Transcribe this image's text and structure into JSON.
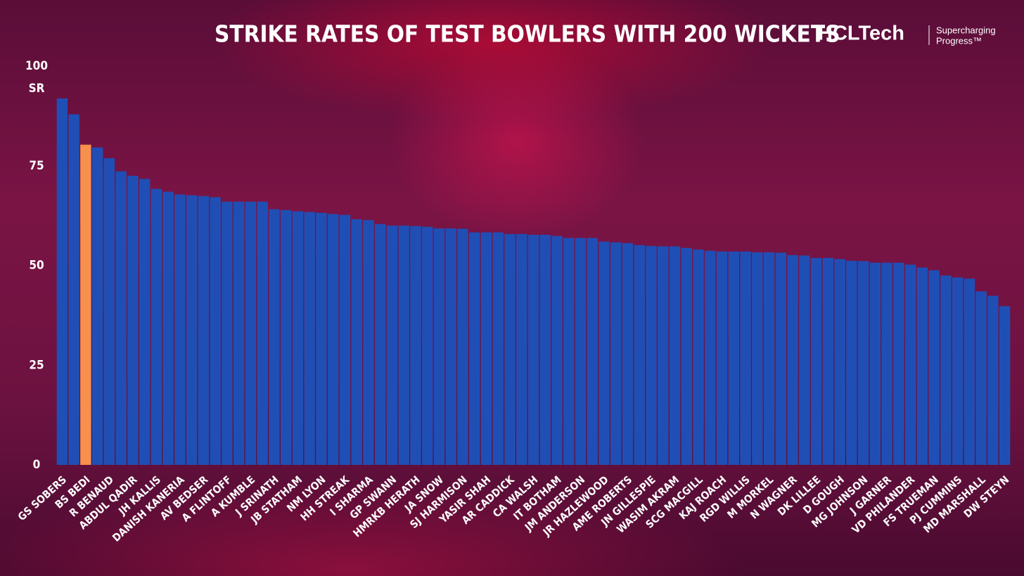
{
  "chart_data": {
    "type": "bar",
    "title": "STRIKE RATES OF TEST BOWLERS WITH 200 WICKETS",
    "brand": "HCLTech",
    "tagline": [
      "Supercharging",
      "Progress™"
    ],
    "y_label": "SR",
    "categories": [
      "GS SOBERS",
      null,
      "BS BEDI",
      null,
      "R BENAUD",
      null,
      "ABDUL QADIR",
      null,
      "JH KALLIS",
      null,
      "DANISH KANERIA",
      null,
      "AV BEDSER",
      null,
      "A FLINTOFF",
      null,
      "A KUMBLE",
      null,
      "J SRINATH",
      null,
      "JB STATHAM",
      null,
      "NM LYON",
      null,
      "HH STREAK",
      null,
      "I SHARMA",
      null,
      "GP SWANN",
      null,
      "HMRKB HERATH",
      null,
      "JA SNOW",
      null,
      "SJ HARMISON",
      null,
      "YASIR SHAH",
      null,
      "AR CADDICK",
      null,
      "CA WALSH",
      null,
      "IT BOTHAM",
      null,
      "JM ANDERSON",
      null,
      "JR HAZLEWOOD",
      null,
      "AME ROBERTS",
      null,
      "JN GILLESPIE",
      null,
      "WASIM AKRAM",
      null,
      "SCG MACGILL",
      null,
      "KAJ ROACH",
      null,
      "RGD WILLIS",
      null,
      "M MORKEL",
      null,
      "N WAGNER",
      null,
      "DK LILLEE",
      null,
      "D GOUGH",
      null,
      "MG JOHNSON",
      null,
      "J GARNER",
      null,
      "VD PHILANDER",
      null,
      "FS TRUEMAN",
      null,
      "PJ CUMMINS",
      null,
      "MD MARSHALL",
      null,
      "DW STEYN"
    ],
    "values": [
      91.9,
      87.9,
      80.3,
      79.6,
      76.9,
      73.6,
      72.5,
      71.7,
      69.2,
      68.5,
      67.8,
      67.6,
      67.4,
      67.1,
      66.0,
      66.0,
      66.0,
      66.0,
      64.1,
      63.9,
      63.6,
      63.4,
      63.2,
      62.9,
      62.7,
      61.6,
      61.4,
      60.4,
      60.0,
      60.0,
      59.9,
      59.7,
      59.3,
      59.3,
      59.2,
      58.3,
      58.3,
      58.3,
      57.9,
      57.9,
      57.7,
      57.7,
      57.4,
      56.9,
      56.9,
      56.9,
      56.0,
      55.8,
      55.6,
      55.1,
      54.9,
      54.8,
      54.8,
      54.4,
      54.0,
      53.7,
      53.5,
      53.5,
      53.5,
      53.3,
      53.3,
      53.2,
      52.6,
      52.5,
      51.9,
      51.9,
      51.6,
      51.2,
      51.1,
      50.7,
      50.7,
      50.7,
      50.2,
      49.5,
      48.8,
      47.5,
      47.0,
      46.7,
      43.5,
      42.4,
      39.8
    ],
    "colors": [
      "#1f4fb5",
      "#1f4fb5",
      "#f7904e",
      "#1f4fb5",
      "#1f4fb5",
      "#1f4fb5",
      "#1f4fb5",
      "#1f4fb5",
      "#1f4fb5",
      "#1f4fb5",
      "#1f4fb5",
      "#1f4fb5",
      "#1f4fb5",
      "#1f4fb5",
      "#1f4fb5",
      "#1f4fb5",
      "#1f4fb5",
      "#1f4fb5",
      "#1f4fb5",
      "#1f4fb5",
      "#1f4fb5",
      "#1f4fb5",
      "#1f4fb5",
      "#1f4fb5",
      "#1f4fb5",
      "#1f4fb5",
      "#1f4fb5",
      "#1f4fb5",
      "#1f4fb5",
      "#1f4fb5",
      "#1f4fb5",
      "#1f4fb5",
      "#1f4fb5",
      "#1f4fb5",
      "#1f4fb5",
      "#1f4fb5",
      "#1f4fb5",
      "#1f4fb5",
      "#1f4fb5",
      "#1f4fb5",
      "#1f4fb5",
      "#1f4fb5",
      "#1f4fb5",
      "#1f4fb5",
      "#1f4fb5",
      "#1f4fb5",
      "#1f4fb5",
      "#1f4fb5",
      "#1f4fb5",
      "#1f4fb5",
      "#1f4fb5",
      "#1f4fb5",
      "#1f4fb5",
      "#1f4fb5",
      "#1f4fb5",
      "#1f4fb5",
      "#1f4fb5",
      "#1f4fb5",
      "#1f4fb5",
      "#1f4fb5",
      "#1f4fb5",
      "#1f4fb5",
      "#1f4fb5",
      "#1f4fb5",
      "#1f4fb5",
      "#1f4fb5",
      "#1f4fb5",
      "#1f4fb5",
      "#1f4fb5",
      "#1f4fb5",
      "#1f4fb5",
      "#1f4fb5",
      "#1f4fb5",
      "#1f4fb5",
      "#1f4fb5",
      "#1f4fb5",
      "#1f4fb5",
      "#1f4fb5",
      "#1f4fb5",
      "#1f4fb5",
      "#1f4fb5"
    ],
    "ylim": [
      0,
      100
    ],
    "yticks": [
      0,
      25,
      50,
      75,
      100
    ],
    "grid": false
  }
}
